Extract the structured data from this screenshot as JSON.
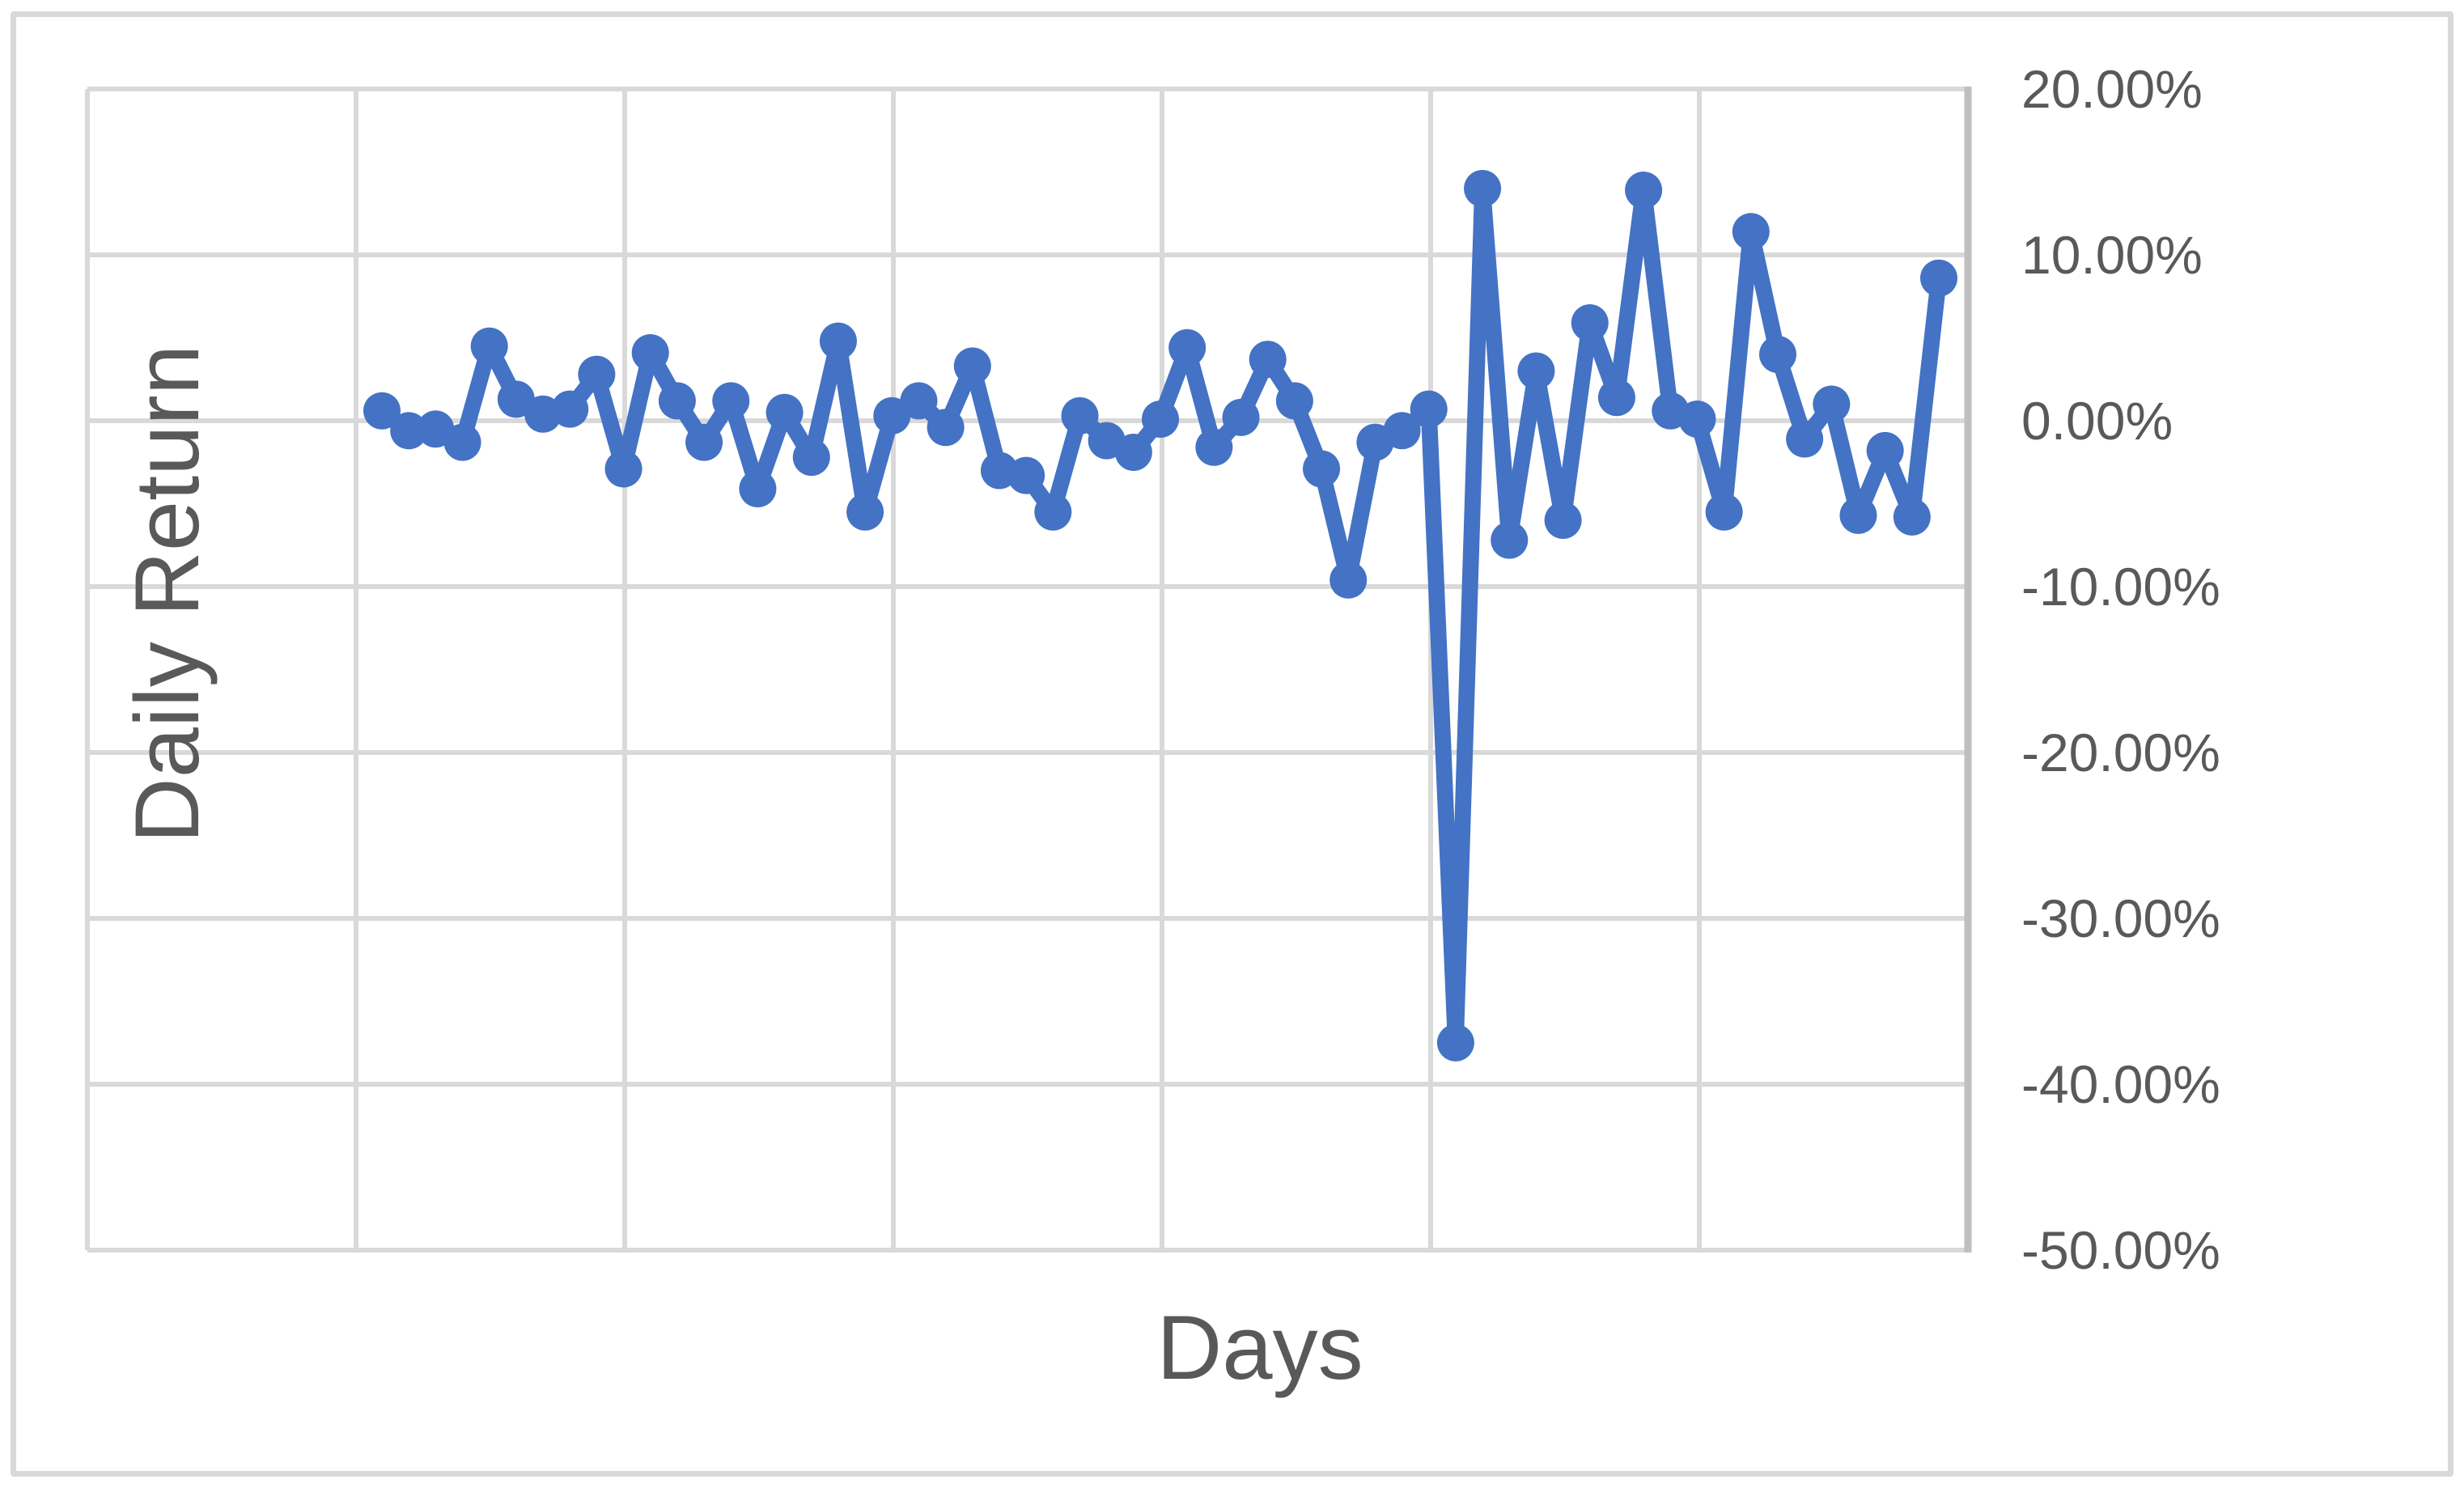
{
  "chart_data": {
    "type": "line",
    "title": "",
    "xlabel": "Days",
    "ylabel": "Daily Return",
    "legend_position": "none",
    "grid": true,
    "ylim": [
      -50,
      20
    ],
    "y_major_step_pct": 10,
    "y_tick_labels": [
      "20.00%",
      "10.00%",
      "0.00%",
      "-10.00%",
      "-20.00%",
      "-30.00%",
      "-40.00%",
      "-50.00%"
    ],
    "x_tick_labels": [],
    "marker": "circle",
    "series": [
      {
        "name": "Daily Return",
        "unit": "percent",
        "values": [
          0.6,
          -0.6,
          -0.5,
          -1.3,
          4.5,
          1.3,
          0.4,
          0.7,
          2.8,
          -2.9,
          4.1,
          1.2,
          -1.3,
          1.2,
          -4.1,
          0.5,
          -2.2,
          4.8,
          -5.5,
          0.3,
          1.2,
          -0.4,
          3.3,
          -3.0,
          -3.3,
          -5.5,
          0.3,
          -1.2,
          -1.9,
          0.1,
          4.4,
          -1.6,
          0.2,
          3.7,
          1.2,
          -2.9,
          -9.6,
          -1.3,
          -0.6,
          0.7,
          -37.5,
          14.0,
          -7.2,
          3.0,
          -6.0,
          5.9,
          1.4,
          13.9,
          0.6,
          0.1,
          -5.5,
          11.4,
          4.0,
          -1.1,
          1.0,
          -5.7,
          -1.8,
          -5.8,
          8.6
        ]
      }
    ],
    "colors": {
      "series_line": "#4472C4",
      "series_marker": "#4472C4",
      "gridline": "#D9D9D9",
      "axis_line": "#BFBFBF",
      "text": "#595959",
      "chart_border": "#D9D9D9",
      "background": "#FFFFFF"
    }
  }
}
